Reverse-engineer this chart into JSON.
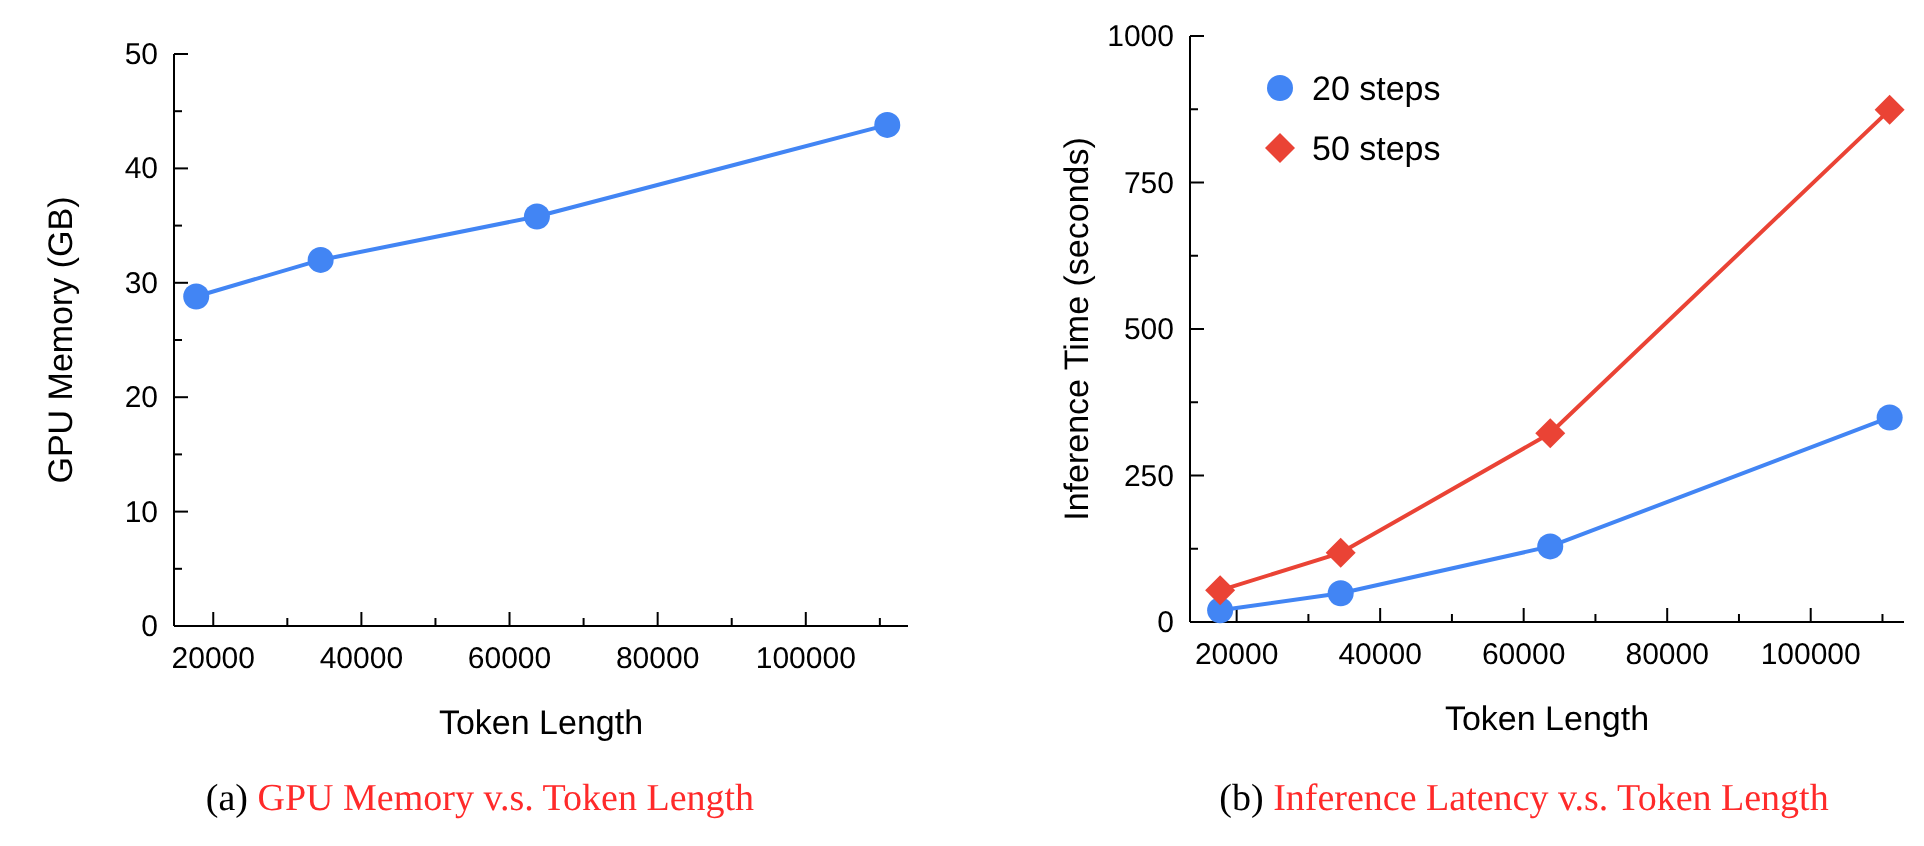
{
  "chart_data": [
    {
      "type": "line",
      "title": "(a) GPU Memory v.s. Token Length",
      "xlabel": "Token Length",
      "ylabel": "GPU Memory (GB)",
      "x": [
        17700,
        34500,
        63700,
        111000
      ],
      "series": [
        {
          "color": "#4285f4",
          "values": [
            28.8,
            32.0,
            35.8,
            43.8
          ],
          "marker": "circle"
        }
      ],
      "xlim": [
        14700,
        113800
      ],
      "xticks": [
        20000,
        {
          "value": 30000,
          "label": null
        },
        40000,
        {
          "value": 50000,
          "label": null
        },
        60000,
        {
          "value": 70000,
          "label": null
        },
        80000,
        {
          "value": 90000,
          "label": null
        },
        100000,
        {
          "value": 110000,
          "label": null
        }
      ],
      "ylim": [
        0,
        50
      ],
      "yticks": [
        0,
        {
          "value": 5,
          "label": null
        },
        10,
        {
          "value": 15,
          "label": null
        },
        20,
        {
          "value": 25,
          "label": null
        },
        30,
        {
          "value": 35,
          "label": null
        },
        40,
        {
          "value": 45,
          "label": null
        },
        50
      ],
      "grid": false,
      "legend": false
    },
    {
      "type": "line",
      "title": "(b) Inference Latency v.s. Token Length",
      "xlabel": "Token Length",
      "ylabel": "Inference Time (seconds)",
      "x": [
        17700,
        34500,
        63700,
        111000
      ],
      "series": [
        {
          "name": "20 steps",
          "color": "#4285f4",
          "values": [
            20,
            49,
            129,
            349
          ],
          "marker": "circle"
        },
        {
          "name": "50 steps",
          "color": "#ea4335",
          "values": [
            54,
            118,
            322,
            874
          ],
          "marker": "diamond"
        }
      ],
      "xlim": [
        13500,
        113000
      ],
      "xticks": [
        20000,
        {
          "value": 30000,
          "label": null
        },
        40000,
        {
          "value": 50000,
          "label": null
        },
        60000,
        {
          "value": 70000,
          "label": null
        },
        80000,
        {
          "value": 90000,
          "label": null
        },
        100000,
        {
          "value": 110000,
          "label": null
        }
      ],
      "ylim": [
        0,
        1000
      ],
      "yticks": [
        0,
        {
          "value": 125,
          "label": null
        },
        250,
        {
          "value": 375,
          "label": null
        },
        500,
        {
          "value": 625,
          "label": null
        },
        750,
        {
          "value": 875,
          "label": null
        },
        1000
      ],
      "grid": false,
      "legend": "top left"
    }
  ]
}
